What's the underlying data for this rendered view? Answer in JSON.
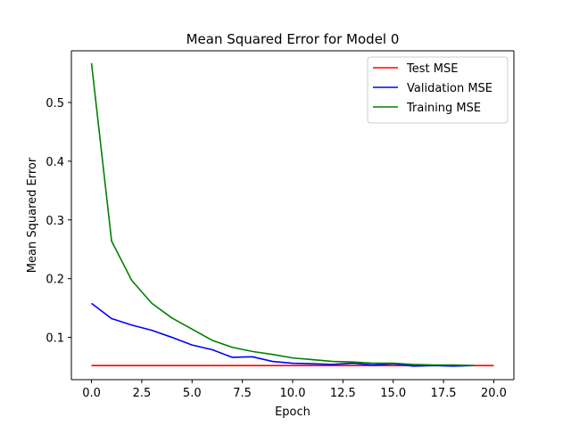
{
  "chart_data": {
    "type": "line",
    "title": "Mean Squared Error for Model 0",
    "xlabel": "Epoch",
    "ylabel": "Mean Squared Error",
    "xlim": [
      -1,
      21
    ],
    "ylim": [
      0.028,
      0.588
    ],
    "xticks": [
      0.0,
      2.5,
      5.0,
      7.5,
      10.0,
      12.5,
      15.0,
      17.5,
      20.0
    ],
    "xtick_labels": [
      "0.0",
      "2.5",
      "5.0",
      "7.5",
      "10.0",
      "12.5",
      "15.0",
      "17.5",
      "20.0"
    ],
    "yticks": [
      0.1,
      0.2,
      0.3,
      0.4,
      0.5
    ],
    "ytick_labels": [
      "0.1",
      "0.2",
      "0.3",
      "0.4",
      "0.5"
    ],
    "grid": false,
    "legend_position": "top-right",
    "series": [
      {
        "name": "Test MSE",
        "color": "#ff0000",
        "x": [
          0,
          20
        ],
        "y": [
          0.052,
          0.052
        ]
      },
      {
        "name": "Validation MSE",
        "color": "#0000ff",
        "x": [
          0,
          1,
          2,
          3,
          4,
          5,
          6,
          7,
          8,
          9,
          10,
          11,
          12,
          13,
          14,
          15,
          16,
          17,
          18,
          19
        ],
        "y": [
          0.158,
          0.132,
          0.121,
          0.112,
          0.1,
          0.087,
          0.079,
          0.066,
          0.067,
          0.059,
          0.056,
          0.055,
          0.054,
          0.056,
          0.053,
          0.055,
          0.051,
          0.052,
          0.051,
          0.052
        ]
      },
      {
        "name": "Training MSE",
        "color": "#008000",
        "x": [
          0,
          1,
          2,
          3,
          4,
          5,
          6,
          7,
          8,
          9,
          10,
          11,
          12,
          13,
          14,
          15,
          16,
          17,
          18,
          19
        ],
        "y": [
          0.567,
          0.264,
          0.197,
          0.158,
          0.133,
          0.114,
          0.095,
          0.083,
          0.076,
          0.071,
          0.065,
          0.062,
          0.059,
          0.058,
          0.056,
          0.056,
          0.054,
          0.053,
          0.053,
          0.052
        ]
      }
    ]
  }
}
